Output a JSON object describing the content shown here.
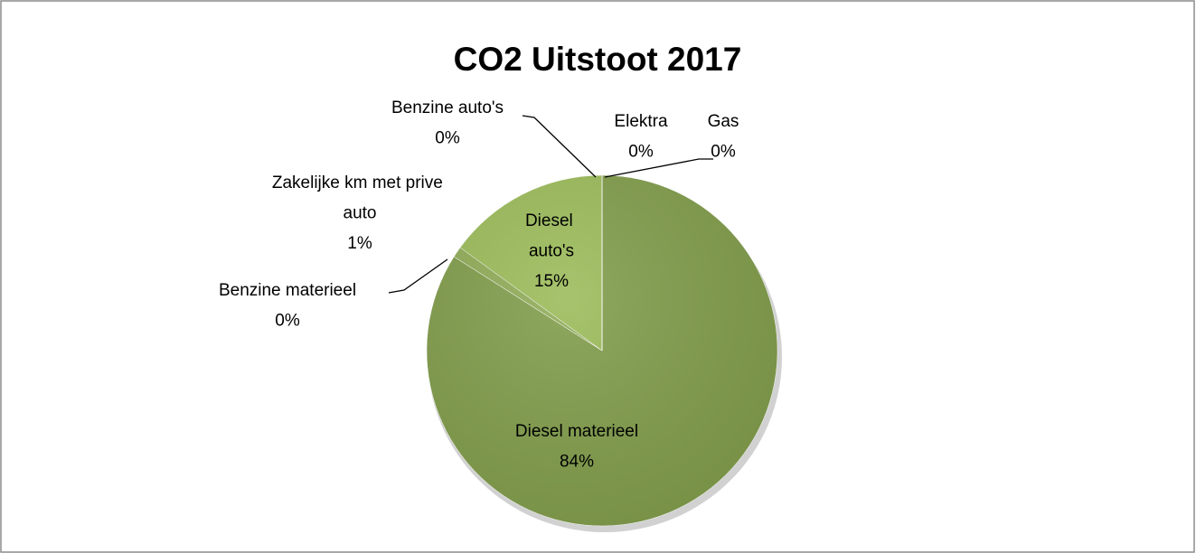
{
  "chart_data": {
    "type": "pie",
    "title": "CO2 Uitstoot  2017",
    "categories": [
      "Diesel materieel",
      "Benzine materieel",
      "Zakelijke km met prive auto",
      "Diesel auto's",
      "Benzine auto's",
      "Elektra",
      "Gas"
    ],
    "values": [
      84,
      0,
      1,
      15,
      0,
      0,
      0
    ],
    "value_labels": [
      "84%",
      "0%",
      "1%",
      "15%",
      "0%",
      "0%",
      "0%"
    ],
    "colors": [
      "#809c4a",
      "#8aa653",
      "#8fab56",
      "#9bbb59",
      "#b3c98a",
      "#c5d5a9",
      "#d7e2c3"
    ]
  }
}
